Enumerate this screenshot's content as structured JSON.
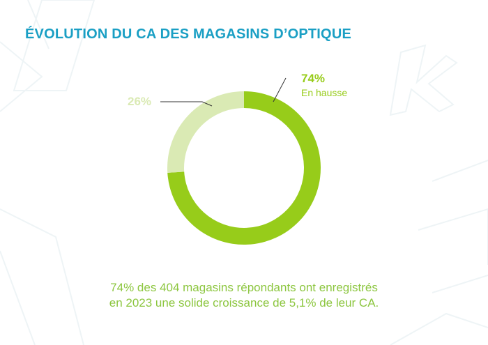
{
  "title": "ÉVOLUTION DU CA DES MAGASINS D’OPTIQUE",
  "colors": {
    "title": "#1a9fc4",
    "up": "#97cc1a",
    "other": "#daeab4",
    "caption": "#8cc63f",
    "deco": "#eef4f6"
  },
  "chart_data": {
    "type": "pie",
    "variant": "donut",
    "title": "ÉVOLUTION DU CA DES MAGASINS D’OPTIQUE",
    "slices": [
      {
        "value": 74,
        "label": "74%",
        "sublabel": "En hausse",
        "color": "#97cc1a"
      },
      {
        "value": 26,
        "label": "26%",
        "sublabel": "",
        "color": "#daeab4"
      }
    ]
  },
  "caption": {
    "line1": "74% des 404 magasins répondants ont enregistrés",
    "line2": "en 2023 une solide croissance de 5,1% de leur CA."
  }
}
